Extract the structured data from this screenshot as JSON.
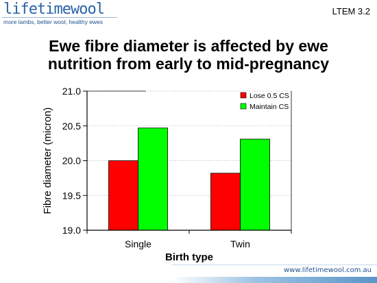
{
  "logo": {
    "main": "lifetimewool",
    "tagline": "more lambs, better wool, healthy ewes"
  },
  "slide_code": "LTEM 3.2",
  "title_line1": "Ewe fibre diameter is affected by ewe",
  "title_line2": "nutrition from early to mid-pregnancy",
  "footer": {
    "url": "www.lifetimewool.com.au"
  },
  "chart_data": {
    "type": "bar",
    "categories": [
      "Single",
      "Twin"
    ],
    "series": [
      {
        "name": "Lose 0.5 CS",
        "color": "#ff0000",
        "values": [
          20.0,
          19.82
        ]
      },
      {
        "name": "Maintain CS",
        "color": "#00ff00",
        "values": [
          20.47,
          20.31
        ]
      }
    ],
    "xlabel": "Birth type",
    "ylabel": "Fibre diameter (micron)",
    "ylim": [
      19.0,
      21.0
    ],
    "yticks": [
      19.0,
      19.5,
      20.0,
      20.5,
      21.0
    ],
    "ytick_labels": [
      "19.0",
      "19.5",
      "20.0",
      "20.5",
      "21.0"
    ],
    "grid": true,
    "legend_position": "top-right"
  }
}
